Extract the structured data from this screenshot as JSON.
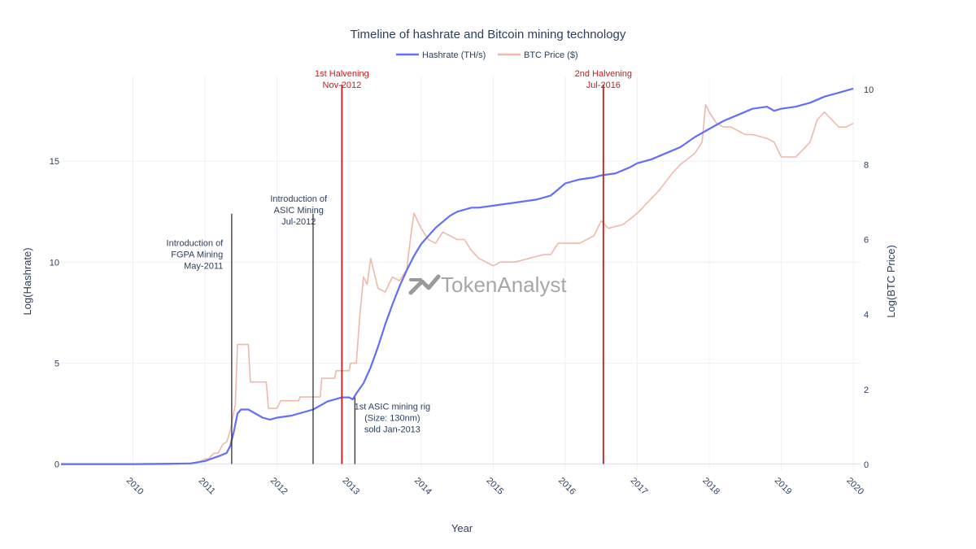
{
  "chart_data": {
    "type": "line",
    "title": "Timeline of hashrate and Bitcoin mining technology",
    "xlabel": "Year",
    "ylabel_left": "Log(Hashrate)",
    "ylabel_right": "Log(BTC Price)",
    "xlim": [
      2009.0,
      2020.1
    ],
    "ylim_left": [
      -0.3,
      19.2
    ],
    "ylim_right": [
      -0.15,
      10.35
    ],
    "x_ticks": [
      2010,
      2011,
      2012,
      2013,
      2014,
      2015,
      2016,
      2017,
      2018,
      2019,
      2020
    ],
    "x_tick_labels": [
      "2010",
      "2011",
      "2012",
      "2013",
      "2014",
      "2015",
      "2016",
      "2017",
      "2018",
      "2019",
      "2020"
    ],
    "y_left_ticks": [
      0,
      5,
      10,
      15
    ],
    "y_left_tick_labels": [
      "0",
      "5",
      "10",
      "15"
    ],
    "y_right_ticks": [
      0,
      2,
      4,
      6,
      8,
      10
    ],
    "y_right_tick_labels": [
      "0",
      "2",
      "4",
      "6",
      "8",
      "10"
    ],
    "grid": true,
    "legend_position": "top-center",
    "series": [
      {
        "name": "Hashrate (TH/s)",
        "axis": "left",
        "color": "#636efa",
        "x": [
          2009.0,
          2010.0,
          2010.8,
          2011.0,
          2011.2,
          2011.3,
          2011.35,
          2011.4,
          2011.45,
          2011.5,
          2011.6,
          2011.7,
          2011.8,
          2011.9,
          2012.0,
          2012.2,
          2012.4,
          2012.5,
          2012.6,
          2012.7,
          2012.8,
          2012.9,
          2013.0,
          2013.05,
          2013.1,
          2013.2,
          2013.3,
          2013.4,
          2013.5,
          2013.6,
          2013.7,
          2013.8,
          2013.9,
          2014.0,
          2014.1,
          2014.2,
          2014.3,
          2014.4,
          2014.5,
          2014.6,
          2014.7,
          2014.8,
          2015.0,
          2015.2,
          2015.4,
          2015.6,
          2015.8,
          2015.9,
          2016.0,
          2016.2,
          2016.4,
          2016.5,
          2016.7,
          2016.9,
          2017.0,
          2017.2,
          2017.4,
          2017.6,
          2017.8,
          2018.0,
          2018.2,
          2018.4,
          2018.6,
          2018.8,
          2018.9,
          2019.0,
          2019.2,
          2019.4,
          2019.6,
          2019.8,
          2020.0
        ],
        "y": [
          0,
          0,
          0.03,
          0.15,
          0.4,
          0.55,
          0.9,
          1.6,
          2.5,
          2.7,
          2.7,
          2.5,
          2.3,
          2.2,
          2.3,
          2.4,
          2.6,
          2.7,
          2.9,
          3.1,
          3.2,
          3.3,
          3.3,
          3.2,
          3.5,
          4.0,
          4.8,
          5.8,
          6.9,
          7.9,
          8.8,
          9.6,
          10.3,
          10.9,
          11.3,
          11.7,
          12.0,
          12.3,
          12.5,
          12.6,
          12.7,
          12.7,
          12.8,
          12.9,
          13.0,
          13.1,
          13.3,
          13.6,
          13.9,
          14.1,
          14.2,
          14.3,
          14.4,
          14.7,
          14.9,
          15.1,
          15.4,
          15.7,
          16.2,
          16.6,
          17.0,
          17.3,
          17.6,
          17.7,
          17.5,
          17.6,
          17.7,
          17.9,
          18.2,
          18.4,
          18.6
        ]
      },
      {
        "name": "BTC Price ($)",
        "axis": "right",
        "color": "#efb9a8",
        "x": [
          2009.0,
          2010.5,
          2010.9,
          2011.0,
          2011.05,
          2011.12,
          2011.18,
          2011.25,
          2011.3,
          2011.35,
          2011.42,
          2011.45,
          2011.6,
          2011.63,
          2011.85,
          2011.88,
          2012.0,
          2012.05,
          2012.3,
          2012.32,
          2012.6,
          2012.62,
          2012.8,
          2012.82,
          2013.0,
          2013.02,
          2013.1,
          2013.15,
          2013.2,
          2013.25,
          2013.3,
          2013.4,
          2013.5,
          2013.6,
          2013.7,
          2013.8,
          2013.85,
          2013.9,
          2013.95,
          2014.0,
          2014.1,
          2014.2,
          2014.3,
          2014.4,
          2014.5,
          2014.6,
          2014.7,
          2014.8,
          2014.9,
          2015.0,
          2015.1,
          2015.3,
          2015.5,
          2015.7,
          2015.8,
          2015.9,
          2016.0,
          2016.2,
          2016.4,
          2016.5,
          2016.6,
          2016.8,
          2017.0,
          2017.1,
          2017.3,
          2017.5,
          2017.6,
          2017.8,
          2017.9,
          2017.95,
          2018.0,
          2018.1,
          2018.2,
          2018.3,
          2018.4,
          2018.5,
          2018.6,
          2018.8,
          2018.9,
          2019.0,
          2019.2,
          2019.3,
          2019.4,
          2019.5,
          2019.6,
          2019.7,
          2019.8,
          2019.9,
          2020.0
        ],
        "y": [
          0,
          0,
          0.05,
          0.15,
          0.15,
          0.3,
          0.3,
          0.55,
          0.6,
          0.9,
          1.6,
          3.2,
          3.2,
          2.2,
          2.2,
          1.5,
          1.5,
          1.7,
          1.7,
          1.8,
          1.8,
          2.3,
          2.3,
          2.5,
          2.5,
          2.7,
          2.7,
          4.0,
          5.0,
          4.8,
          5.5,
          4.7,
          4.6,
          5.0,
          4.9,
          5.2,
          6.0,
          6.7,
          6.5,
          6.3,
          6.0,
          5.9,
          6.2,
          6.1,
          6.0,
          6.0,
          5.7,
          5.5,
          5.4,
          5.3,
          5.4,
          5.4,
          5.5,
          5.6,
          5.6,
          5.9,
          5.9,
          5.9,
          6.1,
          6.5,
          6.3,
          6.4,
          6.7,
          6.9,
          7.3,
          7.8,
          8.0,
          8.3,
          8.6,
          9.6,
          9.4,
          9.1,
          9.0,
          9.0,
          8.9,
          8.8,
          8.8,
          8.7,
          8.6,
          8.2,
          8.2,
          8.4,
          8.6,
          9.2,
          9.4,
          9.2,
          9.0,
          9.0,
          9.1
        ]
      }
    ],
    "annotations": [
      {
        "x": 2011.37,
        "y_top": 12.4,
        "color": "#222222",
        "text": [
          "Introduction of",
          "FGPA Mining",
          "May-2011"
        ],
        "text_x": 2011.25,
        "text_y": 10.8,
        "anchor": "end"
      },
      {
        "x": 2012.5,
        "y_top": 12.4,
        "color": "#222222",
        "text": [
          "Introduction of",
          "ASIC Mining",
          "Jul-2012"
        ],
        "text_x": 2012.3,
        "text_y": 13.0,
        "anchor": "middle"
      },
      {
        "x": 2012.9,
        "y_top": 18.8,
        "color": "#cc1a1a",
        "text": [
          "1st Halvening",
          "Nov-2012"
        ],
        "text_x": 2012.9,
        "text_y": 19.2,
        "anchor": "middle"
      },
      {
        "x": 2013.08,
        "y_top": 3.3,
        "color": "#222222",
        "text": [
          "1st ASIC mining rig",
          "(Size: 130nm)",
          "sold Jan-2013"
        ],
        "text_x": 2013.6,
        "text_y": 2.7,
        "anchor": "middle"
      },
      {
        "x": 2016.53,
        "y_top": 18.8,
        "color": "#cc1a1a",
        "text": [
          "2nd Halvening",
          "Jul-2016"
        ],
        "text_x": 2016.53,
        "text_y": 19.2,
        "anchor": "middle"
      }
    ]
  },
  "watermark": {
    "text": "TokenAnalyst",
    "icon": "tokenanalyst-logo-icon"
  }
}
